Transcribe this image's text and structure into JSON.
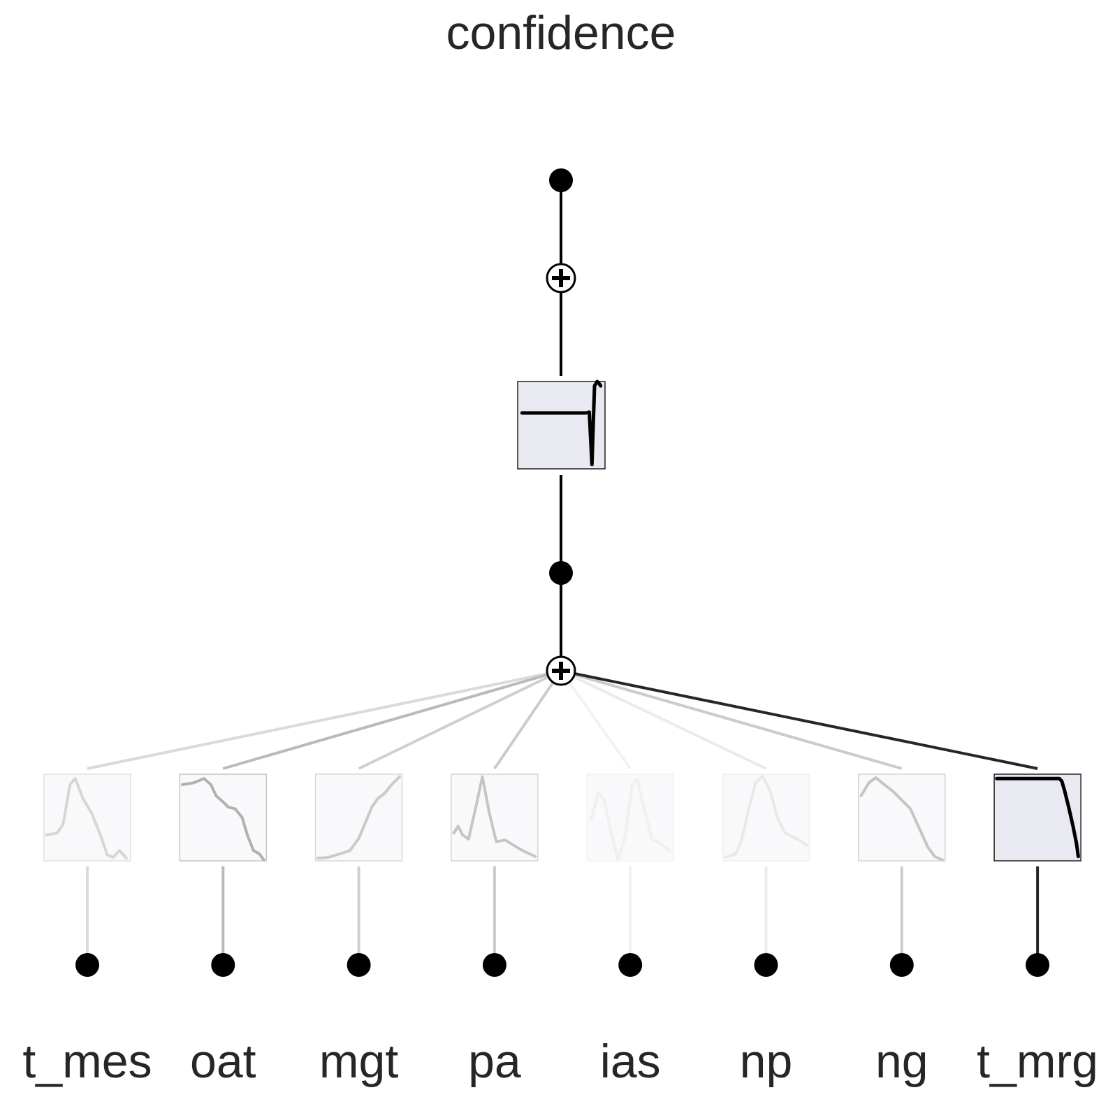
{
  "title": "confidence",
  "output_node": {
    "function_box": {
      "emphasis": 1.0,
      "curve": [
        [
          0.05,
          0.36
        ],
        [
          0.3,
          0.36
        ],
        [
          0.55,
          0.36
        ],
        [
          0.78,
          0.36
        ],
        [
          0.82,
          0.35
        ],
        [
          0.85,
          0.95
        ],
        [
          0.88,
          0.05
        ],
        [
          0.91,
          0.0
        ],
        [
          0.93,
          0.02
        ],
        [
          0.95,
          0.05
        ]
      ]
    }
  },
  "inputs": [
    {
      "label": "t_mes",
      "alpha": 0.17,
      "curve": [
        [
          0.03,
          0.7
        ],
        [
          0.15,
          0.68
        ],
        [
          0.22,
          0.58
        ],
        [
          0.3,
          0.12
        ],
        [
          0.36,
          0.05
        ],
        [
          0.45,
          0.28
        ],
        [
          0.55,
          0.45
        ],
        [
          0.65,
          0.7
        ],
        [
          0.73,
          0.93
        ],
        [
          0.8,
          0.96
        ],
        [
          0.87,
          0.88
        ],
        [
          0.95,
          0.97
        ]
      ]
    },
    {
      "label": "oat",
      "alpha": 0.32,
      "curve": [
        [
          0.03,
          0.12
        ],
        [
          0.16,
          0.1
        ],
        [
          0.28,
          0.05
        ],
        [
          0.36,
          0.12
        ],
        [
          0.42,
          0.25
        ],
        [
          0.5,
          0.32
        ],
        [
          0.56,
          0.38
        ],
        [
          0.64,
          0.4
        ],
        [
          0.72,
          0.5
        ],
        [
          0.78,
          0.7
        ],
        [
          0.85,
          0.88
        ],
        [
          0.92,
          0.92
        ],
        [
          0.97,
          0.99
        ]
      ]
    },
    {
      "label": "mgt",
      "alpha": 0.22,
      "curve": [
        [
          0.03,
          0.97
        ],
        [
          0.15,
          0.96
        ],
        [
          0.28,
          0.92
        ],
        [
          0.4,
          0.88
        ],
        [
          0.5,
          0.74
        ],
        [
          0.58,
          0.55
        ],
        [
          0.65,
          0.38
        ],
        [
          0.72,
          0.28
        ],
        [
          0.8,
          0.22
        ],
        [
          0.88,
          0.12
        ],
        [
          0.97,
          0.03
        ]
      ]
    },
    {
      "label": "pa",
      "alpha": 0.24,
      "curve": [
        [
          0.03,
          0.68
        ],
        [
          0.08,
          0.6
        ],
        [
          0.13,
          0.7
        ],
        [
          0.2,
          0.75
        ],
        [
          0.28,
          0.4
        ],
        [
          0.36,
          0.03
        ],
        [
          0.44,
          0.45
        ],
        [
          0.52,
          0.78
        ],
        [
          0.62,
          0.76
        ],
        [
          0.72,
          0.82
        ],
        [
          0.82,
          0.88
        ],
        [
          0.97,
          0.95
        ]
      ]
    },
    {
      "label": "ias",
      "alpha": 0.06,
      "curve": [
        [
          0.05,
          0.52
        ],
        [
          0.13,
          0.22
        ],
        [
          0.2,
          0.3
        ],
        [
          0.28,
          0.68
        ],
        [
          0.36,
          0.99
        ],
        [
          0.44,
          0.72
        ],
        [
          0.52,
          0.12
        ],
        [
          0.58,
          0.05
        ],
        [
          0.66,
          0.4
        ],
        [
          0.75,
          0.75
        ],
        [
          0.85,
          0.8
        ],
        [
          0.95,
          0.88
        ]
      ]
    },
    {
      "label": "np",
      "alpha": 0.09,
      "curve": [
        [
          0.03,
          0.96
        ],
        [
          0.15,
          0.92
        ],
        [
          0.22,
          0.75
        ],
        [
          0.3,
          0.4
        ],
        [
          0.38,
          0.1
        ],
        [
          0.46,
          0.02
        ],
        [
          0.55,
          0.2
        ],
        [
          0.63,
          0.5
        ],
        [
          0.72,
          0.68
        ],
        [
          0.8,
          0.72
        ],
        [
          0.88,
          0.76
        ],
        [
          0.97,
          0.82
        ]
      ]
    },
    {
      "label": "ng",
      "alpha": 0.24,
      "curve": [
        [
          0.03,
          0.25
        ],
        [
          0.12,
          0.1
        ],
        [
          0.2,
          0.04
        ],
        [
          0.3,
          0.12
        ],
        [
          0.4,
          0.2
        ],
        [
          0.5,
          0.3
        ],
        [
          0.6,
          0.4
        ],
        [
          0.7,
          0.62
        ],
        [
          0.8,
          0.84
        ],
        [
          0.88,
          0.95
        ],
        [
          0.97,
          0.99
        ]
      ]
    },
    {
      "label": "t_mrg",
      "alpha": 1.0,
      "curve": [
        [
          0.03,
          0.05
        ],
        [
          0.35,
          0.05
        ],
        [
          0.6,
          0.05
        ],
        [
          0.75,
          0.05
        ],
        [
          0.78,
          0.08
        ],
        [
          0.81,
          0.18
        ],
        [
          0.86,
          0.38
        ],
        [
          0.91,
          0.6
        ],
        [
          0.95,
          0.8
        ],
        [
          0.97,
          0.95
        ]
      ]
    }
  ]
}
